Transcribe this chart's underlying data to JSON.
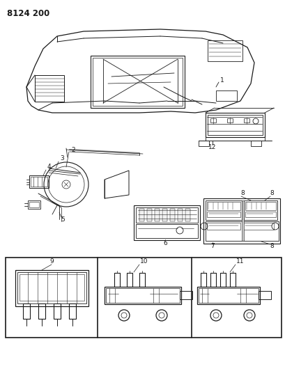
{
  "title": "8124 200",
  "bg_color": "#ffffff",
  "line_color": "#1a1a1a",
  "fig_width": 4.1,
  "fig_height": 5.33,
  "dpi": 100
}
